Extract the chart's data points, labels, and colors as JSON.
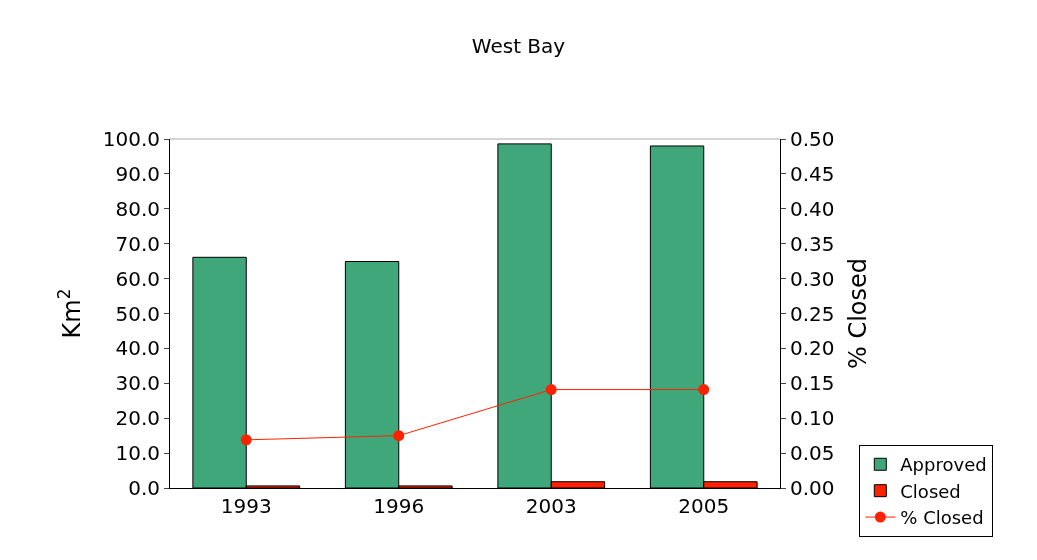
{
  "chart_data": {
    "type": "bar",
    "title": "West Bay",
    "ylabel": "Km$^{2}$",
    "y2label": "% Closed",
    "categories": [
      "1993",
      "1996",
      "2003",
      "2005"
    ],
    "series": [
      {
        "name": "Approved",
        "color": "#3fa77a",
        "values": [
          66.1,
          64.9,
          98.6,
          98.0
        ]
      },
      {
        "name": "Closed",
        "color": "#ff2200",
        "values": [
          0.6,
          0.6,
          1.8,
          1.8
        ]
      },
      {
        "name": "% Closed",
        "type": "line",
        "axis": "y2",
        "color": "#ff2200",
        "values": [
          0.069,
          0.075,
          0.141,
          0.141
        ]
      }
    ],
    "ylim": [
      0,
      100
    ],
    "yticks": [
      {
        "value": 0,
        "label": "0.0"
      },
      {
        "value": 10,
        "label": "10.0"
      },
      {
        "value": 20,
        "label": "20.0"
      },
      {
        "value": 30,
        "label": "30.0"
      },
      {
        "value": 40,
        "label": "40.0"
      },
      {
        "value": 50,
        "label": "50.0"
      },
      {
        "value": 60,
        "label": "60.0"
      },
      {
        "value": 70,
        "label": "70.0"
      },
      {
        "value": 80,
        "label": "80.0"
      },
      {
        "value": 90,
        "label": "90.0"
      },
      {
        "value": 100,
        "label": "100.0"
      }
    ],
    "y2lim": [
      0,
      0.5
    ],
    "y2ticks": [
      {
        "value": 0,
        "label": "0.00"
      },
      {
        "value": 0.05,
        "label": "0.05"
      },
      {
        "value": 0.1,
        "label": "0.10"
      },
      {
        "value": 0.15,
        "label": "0.15"
      },
      {
        "value": 0.2,
        "label": "0.20"
      },
      {
        "value": 0.25,
        "label": "0.25"
      },
      {
        "value": 0.3,
        "label": "0.30"
      },
      {
        "value": 0.35,
        "label": "0.35"
      },
      {
        "value": 0.4,
        "label": "0.40"
      },
      {
        "value": 0.45,
        "label": "0.45"
      },
      {
        "value": 0.5,
        "label": "0.50"
      }
    ],
    "legend": "bottom right",
    "marker": "circle",
    "line_style": "solid"
  }
}
